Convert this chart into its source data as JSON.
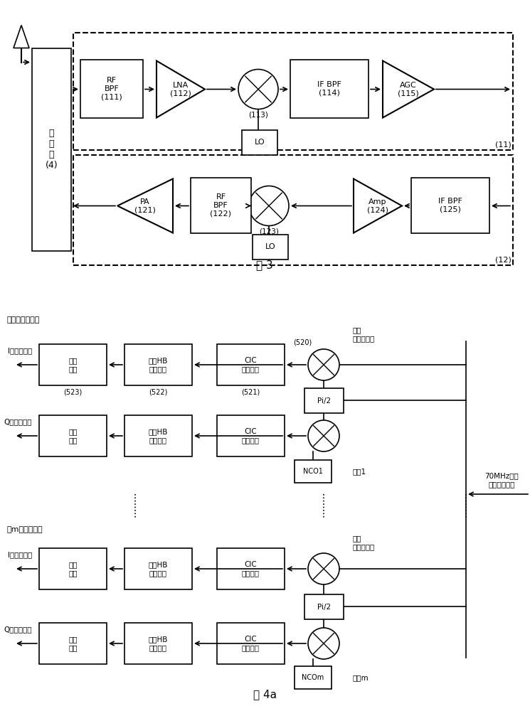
{
  "fig3_title": "图 3",
  "fig4a_title": "图 4a",
  "duplex_label": "双\n工\n器\n(4)",
  "rx_label": "(11)",
  "tx_label": "(12)",
  "rx_blocks": [
    "RF\nBPF\n(111)",
    "LNA\n(112)",
    "(113)",
    "IF BPF\n(114)",
    "AGC\n(115)"
  ],
  "tx_blocks": [
    "PA\n(121)",
    "RF\nBPF\n(122)",
    "(123)",
    "Amp\n(124)",
    "IF BPF\n(125)"
  ],
  "lo": "LO",
  "ch1_label": "第一个载波信道",
  "chm_label": "第m个载波信道",
  "sig70": "70MHz中频\n宽带数字信号",
  "carrier1": "载波1",
  "carrierm": "载波m",
  "dig_down": "数字\n正交下变频",
  "I_sig": "I路基带信号",
  "Q_sig": "Q路基带信号",
  "lpf_text": "低通\n滤波",
  "hb_text": "多级HB\n抽取滤波",
  "cic_text": "CIC\n抽取滤波",
  "labels_ch1": [
    "(523)",
    "(522)",
    "(521)",
    "(520)"
  ],
  "nco1": "NCO1",
  "ncom": "NCOm",
  "pi2": "Pi/2",
  "bg": "#ffffff",
  "black": "#000000"
}
